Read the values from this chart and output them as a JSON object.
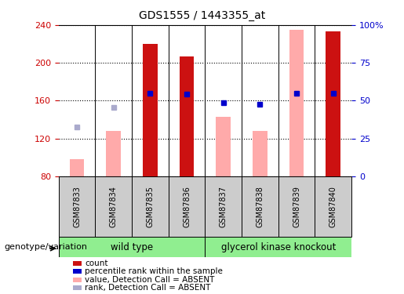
{
  "title": "GDS1555 / 1443355_at",
  "samples": [
    "GSM87833",
    "GSM87834",
    "GSM87835",
    "GSM87836",
    "GSM87837",
    "GSM87838",
    "GSM87839",
    "GSM87840"
  ],
  "count_values": [
    null,
    null,
    220,
    207,
    null,
    null,
    null,
    233
  ],
  "pink_bar_values": [
    98,
    128,
    null,
    null,
    143,
    128,
    235,
    null
  ],
  "blue_square_values": [
    null,
    null,
    168,
    167,
    158,
    156,
    168,
    168
  ],
  "lavender_square_values": [
    132,
    153,
    null,
    null,
    null,
    null,
    null,
    null
  ],
  "ylim": [
    80,
    240
  ],
  "y2lim": [
    0,
    100
  ],
  "yticks": [
    80,
    120,
    160,
    200,
    240
  ],
  "y2ticks": [
    0,
    25,
    50,
    75,
    100
  ],
  "y2tick_labels": [
    "0",
    "25",
    "50",
    "75",
    "100%"
  ],
  "wild_type_label": "wild type",
  "knockout_label": "glycerol kinase knockout",
  "genotype_label": "genotype/variation",
  "bar_red": "#cc1111",
  "bar_pink": "#ffaaaa",
  "dot_blue": "#0000cc",
  "dot_lavender": "#aaaacc",
  "left_axis_color": "#cc0000",
  "right_axis_color": "#0000cc",
  "gray_box_color": "#cccccc",
  "green_box_color": "#90ee90",
  "legend_items": [
    {
      "color": "#cc1111",
      "label": "count"
    },
    {
      "color": "#0000cc",
      "label": "percentile rank within the sample"
    },
    {
      "color": "#ffaaaa",
      "label": "value, Detection Call = ABSENT"
    },
    {
      "color": "#aaaacc",
      "label": "rank, Detection Call = ABSENT"
    }
  ]
}
